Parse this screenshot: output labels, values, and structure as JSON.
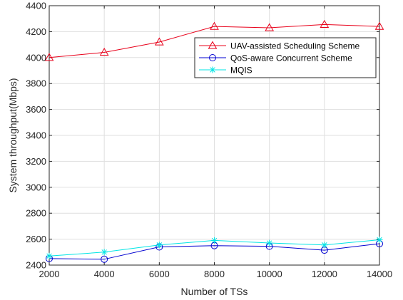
{
  "chart_data": {
    "type": "line",
    "title": "",
    "xlabel": "Number of TSs",
    "ylabel": "System throughput(Mbps)",
    "x": [
      2000,
      4000,
      6000,
      8000,
      10000,
      12000,
      14000
    ],
    "xlim": [
      2000,
      14000
    ],
    "ylim": [
      2400,
      4400
    ],
    "xticks": [
      2000,
      4000,
      6000,
      8000,
      10000,
      12000,
      14000
    ],
    "yticks": [
      2400,
      2600,
      2800,
      3000,
      3200,
      3400,
      3600,
      3800,
      4000,
      4200,
      4400
    ],
    "grid": true,
    "legend_position": "top-right",
    "series": [
      {
        "name": "UAV-assisted Scheduling Scheme",
        "color": "#e8001a",
        "marker": "triangle",
        "values": [
          4000,
          4040,
          4120,
          4240,
          4230,
          4255,
          4240
        ]
      },
      {
        "name": "QoS-aware Concurrent Scheme",
        "color": "#0000d0",
        "marker": "circle",
        "values": [
          2450,
          2445,
          2540,
          2550,
          2545,
          2515,
          2565
        ]
      },
      {
        "name": "MQIS",
        "color": "#00e5e5",
        "marker": "star",
        "values": [
          2470,
          2500,
          2555,
          2590,
          2570,
          2555,
          2595
        ]
      }
    ]
  }
}
